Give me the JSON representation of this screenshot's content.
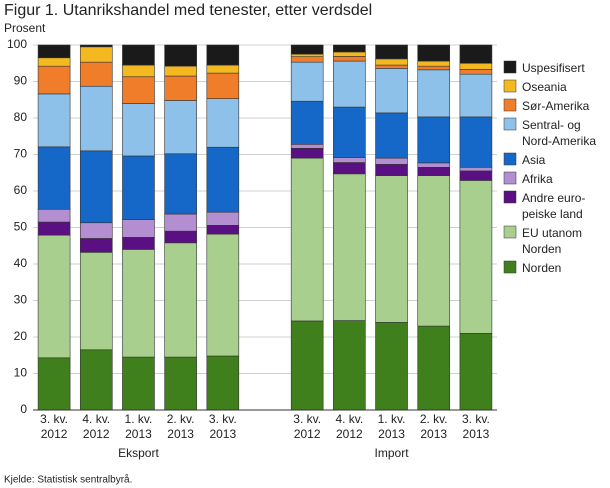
{
  "chart_data": {
    "type": "stacked_bar",
    "title": "Figur 1. Utanrikshandel med tenester, etter verdsdel",
    "y_label": "Prosent",
    "source": "Kjelde: Statistisk sentralbyrå.",
    "categories": [
      "3. kv.\n2012",
      "4. kv.\n2012",
      "1. kv.\n2013",
      "2. kv.\n2013",
      "3. kv.\n2013",
      null,
      "3. kv.\n2012",
      "4. kv.\n2012",
      "1. kv.\n2013",
      "2. kv.\n2013",
      "3. kv.\n2013"
    ],
    "x_groups": [
      "Eksport",
      "Import"
    ],
    "ylim": [
      0,
      100
    ],
    "yticks": [
      0,
      10,
      20,
      30,
      40,
      50,
      60,
      70,
      80,
      90,
      100
    ],
    "grid": true,
    "series": [
      {
        "name": "Norden",
        "color": "#3f7f1c",
        "values": [
          14.3,
          16.5,
          14.5,
          14.5,
          14.8,
          null,
          24.4,
          24.5,
          24,
          23,
          21
        ]
      },
      {
        "name": "EU utanom\nNorden",
        "color": "#a9cf8f",
        "values": [
          33.6,
          26.7,
          29.5,
          31.3,
          33.4,
          null,
          44.6,
          40.2,
          40.2,
          41.2,
          41.9
        ]
      },
      {
        "name": "Andre euro-\npeiske land",
        "color": "#5a0f82",
        "values": [
          3.6,
          3.8,
          3.3,
          3.2,
          2.4,
          null,
          2.7,
          3.1,
          3.1,
          2.3,
          2.6
        ]
      },
      {
        "name": "Afrika",
        "color": "#b38ed1",
        "values": [
          3.5,
          4.3,
          4.9,
          4.7,
          3.6,
          null,
          1.1,
          1.4,
          1.7,
          1.2,
          1
        ]
      },
      {
        "name": "Asia",
        "color": "#1567c8",
        "values": [
          17.1,
          19.7,
          17.4,
          16.5,
          17.8,
          null,
          11.8,
          13.8,
          12.4,
          12.6,
          13.8
        ]
      },
      {
        "name": "Sentral- og\nNord-Amerika",
        "color": "#8ec1ea",
        "values": [
          14.5,
          17.7,
          14.4,
          14.6,
          13.3,
          null,
          10.7,
          12.6,
          12.2,
          12.9,
          11.7
        ]
      },
      {
        "name": "Sør-Amerika",
        "color": "#f07d2a",
        "values": [
          7.6,
          6.6,
          7.3,
          6.7,
          7,
          null,
          1.5,
          1.3,
          0.9,
          1,
          1.3
        ]
      },
      {
        "name": "Oseania",
        "color": "#f4b921",
        "values": [
          2.3,
          4.2,
          3.2,
          2.7,
          2.2,
          null,
          0.7,
          1.2,
          1.7,
          1.4,
          1.7
        ]
      },
      {
        "name": "Uspesifisert",
        "color": "#1a1a1a",
        "values": [
          3.5,
          0.5,
          5.5,
          5.8,
          5.5,
          null,
          2.5,
          1.9,
          3.8,
          4.4,
          5
        ]
      }
    ]
  }
}
